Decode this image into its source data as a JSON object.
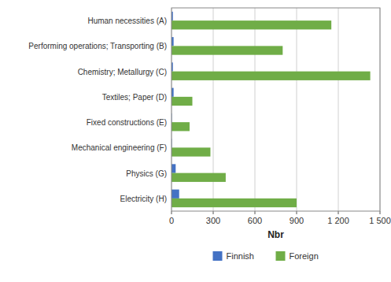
{
  "chart_data": {
    "type": "bar",
    "orientation": "horizontal",
    "categories": [
      "Electricity (H)",
      "Physics (G)",
      "Mechanical engineering (F)",
      "Fixed constructions (E)",
      "Textiles; Paper (D)",
      "Chemistry; Metallurgy  (C)",
      "Performing operations; Transporting (B)",
      "Human necessities (A)"
    ],
    "series": [
      {
        "name": "Finnish",
        "color": "#4472c4",
        "values": [
          55,
          30,
          2,
          2,
          15,
          10,
          15,
          10
        ]
      },
      {
        "name": "Foreign",
        "color": "#70ad47",
        "values": [
          900,
          390,
          280,
          130,
          150,
          1430,
          800,
          1150
        ]
      }
    ],
    "xlabel": "Nbr",
    "xlim": [
      0,
      1500
    ],
    "xticks": [
      0,
      300,
      600,
      900,
      {
        "value": 1200,
        "label": "1 200"
      },
      {
        "value": 1500,
        "label": "1 500"
      }
    ],
    "grid": true,
    "legend": "bottom"
  }
}
